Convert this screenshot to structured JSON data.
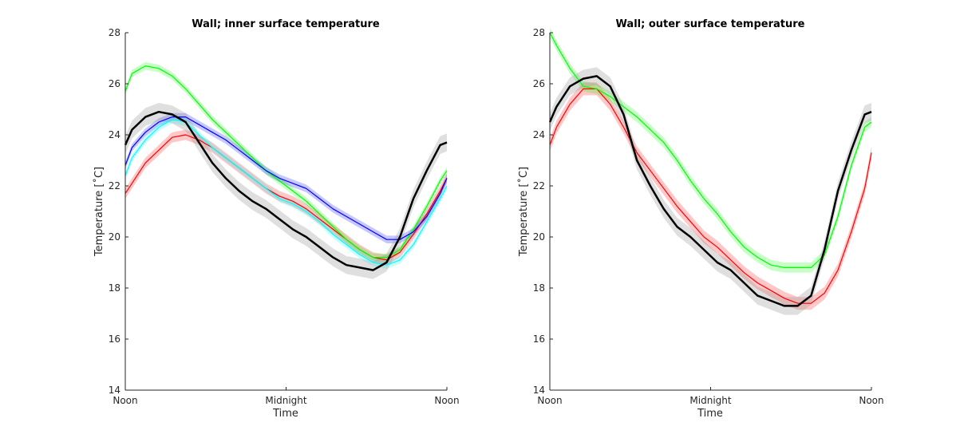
{
  "chart_data": [
    {
      "type": "line",
      "title": "Wall; inner surface temperature",
      "xlabel": "Time",
      "ylabel": "Temperature [˚C]",
      "xlim": [
        0,
        24
      ],
      "ylim": [
        14,
        28
      ],
      "x_ticks": [
        {
          "value": 0,
          "label": "Noon"
        },
        {
          "value": 12,
          "label": "Midnight"
        },
        {
          "value": 24,
          "label": "Noon"
        }
      ],
      "y_ticks": [
        14,
        16,
        18,
        20,
        22,
        24,
        26,
        28
      ],
      "grid": false,
      "legend": "none",
      "x": [
        0,
        0.5,
        1.5,
        2.5,
        3.5,
        4.5,
        5.5,
        6.5,
        7.5,
        8.5,
        9.5,
        10.5,
        11.5,
        12.5,
        13.5,
        14.5,
        15.5,
        16.5,
        17.5,
        18.5,
        19.5,
        20.5,
        21.5,
        22.5,
        23.5,
        24
      ],
      "series": [
        {
          "color": "#ff0000",
          "band": 0.2,
          "values": [
            21.7,
            22.1,
            22.9,
            23.4,
            23.9,
            24.0,
            23.8,
            23.5,
            23.1,
            22.7,
            22.3,
            21.9,
            21.6,
            21.4,
            21.1,
            20.7,
            20.3,
            19.9,
            19.5,
            19.2,
            19.1,
            19.4,
            20.1,
            20.9,
            21.8,
            22.3
          ]
        },
        {
          "color": "#00ff00",
          "band": 0.15,
          "values": [
            25.7,
            26.4,
            26.7,
            26.6,
            26.3,
            25.8,
            25.2,
            24.6,
            24.1,
            23.6,
            23.1,
            22.6,
            22.2,
            21.8,
            21.4,
            20.9,
            20.4,
            19.9,
            19.5,
            19.2,
            19.2,
            19.5,
            20.3,
            21.2,
            22.2,
            22.6
          ]
        },
        {
          "color": "#0000ff",
          "band": 0.15,
          "values": [
            22.8,
            23.5,
            24.1,
            24.5,
            24.7,
            24.7,
            24.4,
            24.1,
            23.8,
            23.4,
            23.0,
            22.6,
            22.3,
            22.1,
            21.9,
            21.5,
            21.1,
            20.8,
            20.5,
            20.2,
            19.9,
            19.9,
            20.2,
            20.8,
            21.7,
            22.3
          ]
        },
        {
          "color": "#00ffff",
          "band": 0.15,
          "values": [
            22.4,
            23.1,
            23.8,
            24.3,
            24.6,
            24.5,
            24.0,
            23.5,
            23.1,
            22.7,
            22.3,
            21.9,
            21.5,
            21.3,
            21.0,
            20.6,
            20.1,
            19.7,
            19.3,
            19.0,
            18.9,
            19.1,
            19.7,
            20.6,
            21.5,
            22.0
          ]
        },
        {
          "color": "#000000",
          "band": 0.35,
          "bold": true,
          "values": [
            23.6,
            24.2,
            24.7,
            24.9,
            24.8,
            24.5,
            23.7,
            22.9,
            22.3,
            21.8,
            21.4,
            21.1,
            20.7,
            20.3,
            20.0,
            19.6,
            19.2,
            18.9,
            18.8,
            18.7,
            19.0,
            20.0,
            21.5,
            22.6,
            23.6,
            23.7
          ]
        }
      ]
    },
    {
      "type": "line",
      "title": "Wall; outer surface temperature",
      "xlabel": "Time",
      "ylabel": "Temperature [˚C]",
      "xlim": [
        0,
        24
      ],
      "ylim": [
        14,
        28
      ],
      "x_ticks": [
        {
          "value": 0,
          "label": "Noon"
        },
        {
          "value": 12,
          "label": "Midnight"
        },
        {
          "value": 24,
          "label": "Noon"
        }
      ],
      "y_ticks": [
        14,
        16,
        18,
        20,
        22,
        24,
        26,
        28
      ],
      "grid": false,
      "legend": "none",
      "x": [
        0,
        0.5,
        1.5,
        2.5,
        3.5,
        4.5,
        5.5,
        6.5,
        7.5,
        8.5,
        9.5,
        10.5,
        11.5,
        12.5,
        13.5,
        14.5,
        15.5,
        16.5,
        17.5,
        18.5,
        19.5,
        20.5,
        21.5,
        22.5,
        23.5,
        24
      ],
      "series": [
        {
          "color": "#ff0000",
          "band": 0.25,
          "values": [
            23.6,
            24.3,
            25.2,
            25.8,
            25.8,
            25.2,
            24.3,
            23.3,
            22.6,
            21.9,
            21.2,
            20.6,
            20.0,
            19.6,
            19.1,
            18.6,
            18.2,
            17.9,
            17.6,
            17.4,
            17.4,
            17.8,
            18.7,
            20.2,
            21.9,
            23.3
          ]
        },
        {
          "color": "#00ff00",
          "band": 0.2,
          "values": [
            28.0,
            27.5,
            26.6,
            25.9,
            25.8,
            25.5,
            25.1,
            24.7,
            24.2,
            23.7,
            23.0,
            22.2,
            21.5,
            20.9,
            20.2,
            19.6,
            19.2,
            18.9,
            18.8,
            18.8,
            18.8,
            19.3,
            20.8,
            22.8,
            24.3,
            24.5
          ]
        },
        {
          "color": "#000000",
          "band": 0.35,
          "bold": true,
          "values": [
            24.5,
            25.1,
            25.9,
            26.2,
            26.3,
            25.9,
            24.8,
            23.0,
            22.0,
            21.1,
            20.4,
            20.0,
            19.5,
            19.0,
            18.7,
            18.2,
            17.7,
            17.5,
            17.3,
            17.3,
            17.7,
            19.5,
            21.8,
            23.4,
            24.8,
            24.9
          ]
        }
      ]
    }
  ]
}
